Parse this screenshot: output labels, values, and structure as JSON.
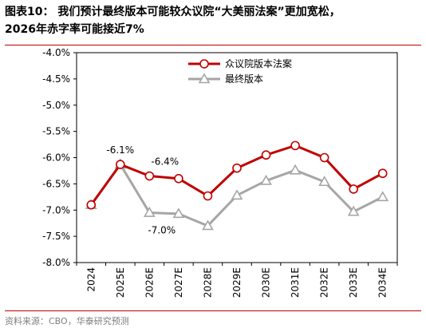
{
  "figure": {
    "title_line1": "图表10： 我们预计最终版本可能较众议院“大美丽法案”更加宽松，",
    "title_line2": "2026年赤字率可能接近7%",
    "source": "资料来源：CBO，华泰研究预测"
  },
  "chart_data": {
    "type": "line",
    "categories": [
      "2024",
      "2025E",
      "2026E",
      "2027E",
      "2028E",
      "2029E",
      "2030E",
      "2031E",
      "2032E",
      "2033E",
      "2034E"
    ],
    "series": [
      {
        "name": "众议院版本法案",
        "color": "#c00000",
        "marker": "circle",
        "values": [
          -6.9,
          -6.13,
          -6.35,
          -6.4,
          -6.73,
          -6.2,
          -5.95,
          -5.77,
          -6.0,
          -6.6,
          -6.3
        ]
      },
      {
        "name": "最终版本",
        "color": "#a6a6a6",
        "marker": "triangle",
        "values": [
          -6.9,
          -6.13,
          -7.05,
          -7.07,
          -7.3,
          -6.72,
          -6.44,
          -6.24,
          -6.46,
          -7.03,
          -6.75
        ]
      }
    ],
    "ylim": [
      -8.0,
      -4.0
    ],
    "yticks": [
      -4.0,
      -4.5,
      -5.0,
      -5.5,
      -6.0,
      -6.5,
      -7.0,
      -7.5,
      -8.0
    ],
    "ytick_labels": [
      "-4.0%",
      "-4.5%",
      "-5.0%",
      "-5.5%",
      "-6.0%",
      "-6.5%",
      "-7.0%",
      "-7.5%",
      "-8.0%"
    ],
    "annotations": [
      {
        "text": "-6.1%",
        "series": 0,
        "index": 1,
        "position": "above"
      },
      {
        "text": "-6.4%",
        "series": 0,
        "index": 2,
        "position": "above-right"
      },
      {
        "text": "-7.0%",
        "series": 1,
        "index": 2,
        "position": "below-right"
      }
    ],
    "legend": "top-center",
    "grid": false
  }
}
